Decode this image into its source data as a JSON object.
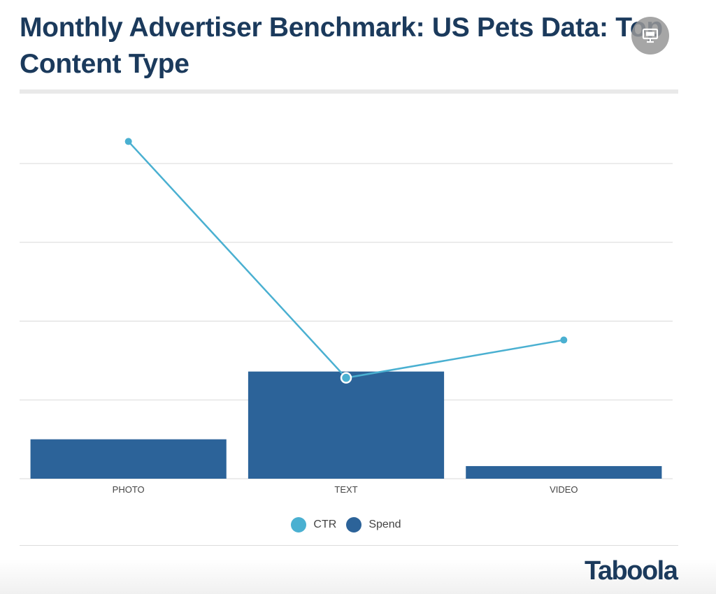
{
  "page": {
    "title": "Monthly Advertiser Benchmark: US Pets Data: Top Content Type",
    "brand": "Taboola",
    "expand_icon": "presentation-icon"
  },
  "colors": {
    "title": "#1b3a5c",
    "bar": "#2c6399",
    "line": "#4ab0d1",
    "grid": "#d9d9d9"
  },
  "chart_data": {
    "type": "bar",
    "categories": [
      "PHOTO",
      "TEXT",
      "VIDEO"
    ],
    "ylim": [
      0,
      100
    ],
    "grid": true,
    "legend_placement": "bottom-center",
    "series": [
      {
        "name": "Spend",
        "type": "bar",
        "values": [
          12.5,
          34,
          4
        ]
      },
      {
        "name": "CTR",
        "type": "line",
        "values": [
          107,
          32,
          44
        ]
      }
    ],
    "legend": [
      "CTR",
      "Spend"
    ]
  }
}
